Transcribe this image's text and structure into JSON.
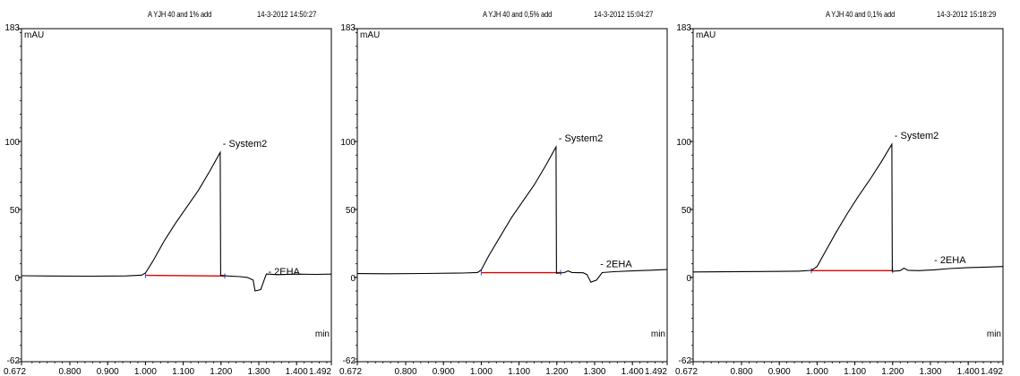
{
  "chart_data": [
    {
      "type": "line",
      "title": "A YJH 40 and 1% add",
      "timestamp": "14-3-2012 14:50:27",
      "ylabel": "mAU",
      "xlabel": "min",
      "xlim": [
        0.672,
        1.492
      ],
      "ylim": [
        -62,
        183
      ],
      "y_top_label": "183",
      "y_bottom_label": "-62",
      "yticks": [
        "100",
        "50",
        "0"
      ],
      "xticks": [
        "0.672",
        "0.800",
        "0.900",
        "1.000",
        "1.100",
        "1.200",
        "1.300",
        "1.400",
        "1.492"
      ],
      "series": [
        {
          "values": [
            [
              0.672,
              1.2
            ],
            [
              0.75,
              1.0
            ],
            [
              0.85,
              0.9
            ],
            [
              0.95,
              1.1
            ],
            [
              0.99,
              1.7
            ],
            [
              1.0,
              3.2
            ],
            [
              1.02,
              12
            ],
            [
              1.05,
              27
            ],
            [
              1.08,
              40
            ],
            [
              1.11,
              52
            ],
            [
              1.14,
              64
            ],
            [
              1.17,
              78
            ],
            [
              1.198,
              92
            ],
            [
              1.199,
              1.5
            ],
            [
              1.22,
              1.0
            ],
            [
              1.25,
              0.6
            ],
            [
              1.27,
              0.0
            ],
            [
              1.285,
              -2.0
            ],
            [
              1.29,
              -10.0
            ],
            [
              1.305,
              -9.0
            ],
            [
              1.32,
              2.5
            ],
            [
              1.35,
              2.0
            ],
            [
              1.4,
              2.4
            ],
            [
              1.45,
              2.2
            ],
            [
              1.492,
              2.4
            ]
          ]
        }
      ],
      "baseline": [
        1.0,
        1.5,
        1.21,
        1.0
      ],
      "baseline_color": "#e00000",
      "peaks": [
        {
          "label": "System2",
          "x": 1.2,
          "y": 92
        },
        {
          "label": "2EHA",
          "x": 1.32,
          "y": -2
        }
      ]
    },
    {
      "type": "line",
      "title": "A YJH 40 and 0,5% add",
      "timestamp": "14-3-2012 15:04:27",
      "ylabel": "mAU",
      "xlabel": "min",
      "xlim": [
        0.672,
        1.492
      ],
      "ylim": [
        -62,
        183
      ],
      "y_top_label": "183",
      "y_bottom_label": "-62",
      "yticks": [
        "100",
        "50",
        "0"
      ],
      "xticks": [
        "0.672",
        "0.800",
        "0.900",
        "1.000",
        "1.100",
        "1.200",
        "1.300",
        "1.400",
        "1.492"
      ],
      "series": [
        {
          "values": [
            [
              0.672,
              2.8
            ],
            [
              0.75,
              2.7
            ],
            [
              0.85,
              2.9
            ],
            [
              0.95,
              3.2
            ],
            [
              0.99,
              3.6
            ],
            [
              1.0,
              5.5
            ],
            [
              1.02,
              16
            ],
            [
              1.05,
              30
            ],
            [
              1.08,
              44
            ],
            [
              1.11,
              56
            ],
            [
              1.14,
              68
            ],
            [
              1.17,
              82
            ],
            [
              1.198,
              96
            ],
            [
              1.199,
              3.0
            ],
            [
              1.22,
              3.5
            ],
            [
              1.23,
              4.8
            ],
            [
              1.24,
              3.6
            ],
            [
              1.27,
              3.4
            ],
            [
              1.28,
              2.0
            ],
            [
              1.29,
              -3.5
            ],
            [
              1.305,
              -2.0
            ],
            [
              1.32,
              3.5
            ],
            [
              1.35,
              4.2
            ],
            [
              1.4,
              4.8
            ],
            [
              1.45,
              5.3
            ],
            [
              1.492,
              5.8
            ]
          ]
        }
      ],
      "baseline": [
        1.0,
        3.5,
        1.21,
        3.5
      ],
      "baseline_color": "#e00000",
      "peaks": [
        {
          "label": "System2",
          "x": 1.2,
          "y": 96
        },
        {
          "label": "2EHA",
          "x": 1.31,
          "y": 3.5
        }
      ]
    },
    {
      "type": "line",
      "title": "A YJH 40 and 0,1% add",
      "timestamp": "14-3-2012 15:18:29",
      "ylabel": "mAU",
      "xlabel": "min",
      "xlim": [
        0.672,
        1.492
      ],
      "ylim": [
        -62,
        183
      ],
      "y_top_label": "183",
      "y_bottom_label": "-62",
      "yticks": [
        "100",
        "50",
        "0"
      ],
      "xticks": [
        "0.672",
        "0.800",
        "0.900",
        "1.000",
        "1.100",
        "1.200",
        "1.300",
        "1.400",
        "1.492"
      ],
      "series": [
        {
          "values": [
            [
              0.672,
              4.0
            ],
            [
              0.75,
              4.1
            ],
            [
              0.85,
              4.3
            ],
            [
              0.95,
              4.6
            ],
            [
              0.985,
              5.2
            ],
            [
              1.0,
              8.0
            ],
            [
              1.02,
              18
            ],
            [
              1.05,
              33
            ],
            [
              1.08,
              47
            ],
            [
              1.11,
              60
            ],
            [
              1.14,
              72
            ],
            [
              1.17,
              85
            ],
            [
              1.198,
              98
            ],
            [
              1.199,
              4.5
            ],
            [
              1.22,
              5.0
            ],
            [
              1.23,
              6.8
            ],
            [
              1.24,
              5.2
            ],
            [
              1.27,
              5.0
            ],
            [
              1.29,
              5.3
            ],
            [
              1.31,
              5.6
            ],
            [
              1.35,
              6.5
            ],
            [
              1.4,
              7.2
            ],
            [
              1.45,
              7.6
            ],
            [
              1.492,
              8.0
            ]
          ]
        }
      ],
      "baseline": [
        0.985,
        5.0,
        1.2,
        5.0
      ],
      "baseline_color": "#e00000",
      "peaks": [
        {
          "label": "System2",
          "x": 1.2,
          "y": 98
        },
        {
          "label": "2EHA",
          "x": 1.305,
          "y": 6.5
        }
      ]
    }
  ]
}
